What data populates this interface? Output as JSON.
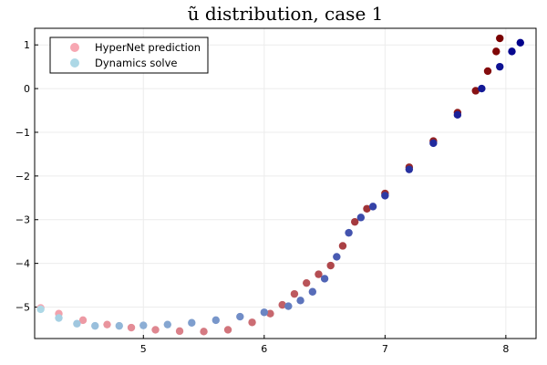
{
  "chart_data": {
    "type": "scatter",
    "title": "ũ distribution, case 1",
    "xlabel": "",
    "ylabel": "",
    "xlim": [
      4.1,
      8.25
    ],
    "ylim": [
      -5.72,
      1.38
    ],
    "xticks": [
      5,
      6,
      7,
      8
    ],
    "yticks": [
      -5,
      -4,
      -3,
      -2,
      -1,
      0,
      1
    ],
    "grid": true,
    "legend_position": "top-left",
    "series": [
      {
        "name": "HyperNet prediction",
        "legend_color": "#f7a7b2",
        "color_start": "#f7a7b2",
        "color_end": "#7a0000",
        "x": [
          4.15,
          4.3,
          4.5,
          4.7,
          4.9,
          5.1,
          5.3,
          5.5,
          5.7,
          5.9,
          6.05,
          6.15,
          6.25,
          6.35,
          6.45,
          6.55,
          6.65,
          6.75,
          6.85,
          7.0,
          7.2,
          7.4,
          7.6,
          7.75,
          7.85,
          7.92,
          7.95
        ],
        "y": [
          -5.02,
          -5.15,
          -5.3,
          -5.4,
          -5.47,
          -5.52,
          -5.55,
          -5.56,
          -5.52,
          -5.35,
          -5.15,
          -4.95,
          -4.7,
          -4.45,
          -4.25,
          -4.05,
          -3.6,
          -3.05,
          -2.75,
          -2.4,
          -1.8,
          -1.2,
          -0.55,
          -0.05,
          0.4,
          0.85,
          1.15
        ]
      },
      {
        "name": "Dynamics solve",
        "legend_color": "#add8e6",
        "color_start": "#add8e6",
        "color_end": "#00008b",
        "x": [
          4.15,
          4.3,
          4.45,
          4.6,
          4.8,
          5.0,
          5.2,
          5.4,
          5.6,
          5.8,
          6.0,
          6.2,
          6.3,
          6.4,
          6.5,
          6.6,
          6.7,
          6.8,
          6.9,
          7.0,
          7.2,
          7.4,
          7.6,
          7.8,
          7.95,
          8.05,
          8.12
        ],
        "y": [
          -5.05,
          -5.25,
          -5.38,
          -5.43,
          -5.43,
          -5.42,
          -5.4,
          -5.36,
          -5.3,
          -5.22,
          -5.12,
          -4.98,
          -4.85,
          -4.65,
          -4.35,
          -3.85,
          -3.3,
          -2.95,
          -2.7,
          -2.45,
          -1.85,
          -1.25,
          -0.6,
          0.0,
          0.5,
          0.85,
          1.05
        ]
      }
    ]
  }
}
